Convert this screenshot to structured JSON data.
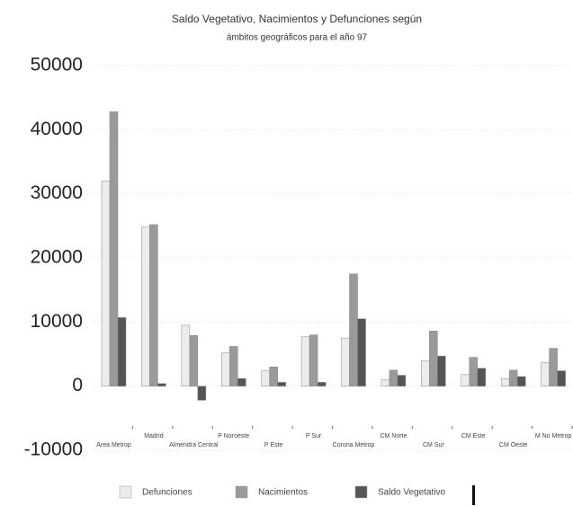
{
  "chart_data": {
    "type": "bar",
    "title": "Saldo Vegetativo, Nacimientos y Defunciones según",
    "subtitle": "ámbitos geográficos para el año 97",
    "categories": [
      "Area Metrop",
      "Madrid",
      "Almendra Central",
      "P Noroeste",
      "P Este",
      "P Sur",
      "Corona Metrop",
      "CM Norte",
      "CM Sur",
      "CM Este",
      "CM Oeste",
      "M No Metrop"
    ],
    "series": [
      {
        "name": "Defunciones",
        "color": "#ececec",
        "values": [
          32000,
          24800,
          9500,
          5200,
          2400,
          7700,
          7500,
          1000,
          4000,
          1800,
          1200,
          3700
        ]
      },
      {
        "name": "Nacimientos",
        "color": "#9a9a9a",
        "values": [
          42800,
          25200,
          7900,
          6200,
          3000,
          8000,
          17500,
          2500,
          8600,
          4500,
          2500,
          5900
        ]
      },
      {
        "name": "Saldo Vegetativo",
        "color": "#555555",
        "values": [
          10700,
          400,
          -2200,
          1200,
          600,
          600,
          10500,
          1700,
          4700,
          2800,
          1500,
          2400
        ]
      }
    ],
    "ylim": [
      -10000,
      50000
    ],
    "yticks": [
      -10000,
      0,
      10000,
      20000,
      30000,
      40000,
      50000
    ],
    "grid": true
  }
}
